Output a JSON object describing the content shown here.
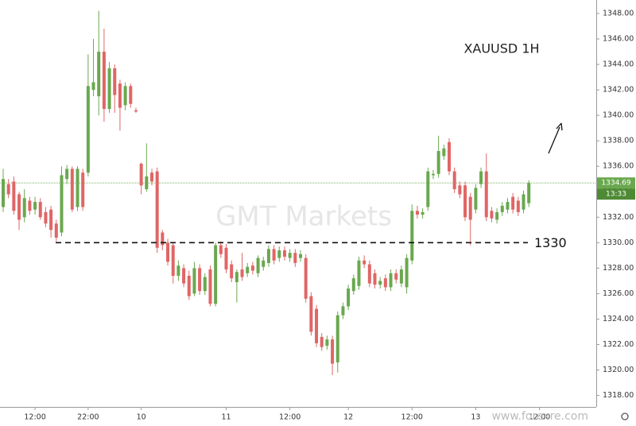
{
  "chart_data": {
    "type": "candlestick",
    "title": "XAUUSD 1H",
    "watermark": "GMT Markets",
    "source": "www.forexre.com",
    "level": 1330,
    "last_price": 1334.69,
    "countdown": "13:33",
    "up_color": "#6aa84f",
    "down_color": "#e06666",
    "ylim": [
      1317.1,
      1349.06
    ],
    "yticks": [
      {
        "value": 1318,
        "label": "1318.00"
      },
      {
        "value": 1320,
        "label": "1320.00"
      },
      {
        "value": 1322,
        "label": "1322.00"
      },
      {
        "value": 1324,
        "label": "1324.00"
      },
      {
        "value": 1326,
        "label": "1326.00"
      },
      {
        "value": 1328,
        "label": "1328.00"
      },
      {
        "value": 1330,
        "label": "1330.00"
      },
      {
        "value": 1332,
        "label": "1332.00"
      },
      {
        "value": 1334,
        "label": "1334.00"
      },
      {
        "value": 1336,
        "label": "1336.00"
      },
      {
        "value": 1338,
        "label": "1338.00"
      },
      {
        "value": 1340,
        "label": "1340.00"
      },
      {
        "value": 1342,
        "label": "1342.00"
      },
      {
        "value": 1344,
        "label": "1344.00"
      },
      {
        "value": 1346,
        "label": "1346.00"
      },
      {
        "value": 1348,
        "label": "1348.00"
      }
    ],
    "xlim": [
      -0.6,
      111.7
    ],
    "xticks": [
      {
        "value": 6,
        "label": "12:00"
      },
      {
        "value": 16,
        "label": "22:00"
      },
      {
        "value": 26,
        "label": "10"
      },
      {
        "value": 42,
        "label": "11"
      },
      {
        "value": 54,
        "label": "12:00"
      },
      {
        "value": 65,
        "label": "12"
      },
      {
        "value": 77,
        "label": "12:00"
      },
      {
        "value": 89,
        "label": "13"
      },
      {
        "value": 101,
        "label": "12:00"
      }
    ],
    "ohlc": [
      [
        1332.8,
        1335.8,
        1332.4,
        1335.0
      ],
      [
        1334.6,
        1335.0,
        1333.5,
        1333.8
      ],
      [
        1334.8,
        1335.2,
        1332.2,
        1332.5
      ],
      [
        1333.8,
        1334.0,
        1331.0,
        1331.8
      ],
      [
        1332.0,
        1334.2,
        1331.6,
        1333.5
      ],
      [
        1333.3,
        1333.6,
        1332.2,
        1332.5
      ],
      [
        1332.6,
        1333.6,
        1332.2,
        1333.2
      ],
      [
        1333.2,
        1333.5,
        1331.8,
        1332.0
      ],
      [
        1332.4,
        1332.8,
        1331.2,
        1331.5
      ],
      [
        1332.6,
        1332.9,
        1330.4,
        1331.0
      ],
      [
        1331.5,
        1331.8,
        1330.1,
        1330.4
      ],
      [
        1330.8,
        1336.0,
        1330.5,
        1335.3
      ],
      [
        1335.0,
        1336.1,
        1334.6,
        1335.8
      ],
      [
        1335.8,
        1336.0,
        1332.4,
        1332.6
      ],
      [
        1332.8,
        1336.0,
        1332.5,
        1335.8
      ],
      [
        1335.5,
        1335.8,
        1332.5,
        1332.8
      ],
      [
        1335.5,
        1344.8,
        1335.2,
        1342.3
      ],
      [
        1342.0,
        1346.0,
        1341.5,
        1342.6
      ],
      [
        1341.5,
        1348.2,
        1340.0,
        1345.0
      ],
      [
        1345.0,
        1346.8,
        1339.5,
        1340.5
      ],
      [
        1340.5,
        1344.2,
        1340.2,
        1343.7
      ],
      [
        1343.7,
        1344.0,
        1340.2,
        1341.6
      ],
      [
        1342.5,
        1342.8,
        1338.8,
        1340.6
      ],
      [
        1340.8,
        1342.6,
        1340.4,
        1342.3
      ],
      [
        1342.3,
        1342.5,
        1340.6,
        1340.9
      ],
      [
        1340.4,
        1340.6,
        1340.2,
        1340.3
      ],
      [
        1336.2,
        1336.3,
        1333.8,
        1334.5
      ],
      [
        1334.2,
        1337.8,
        1334.0,
        1335.2
      ],
      [
        1335.5,
        1335.8,
        1334.5,
        1334.8
      ],
      [
        1335.6,
        1335.9,
        1329.2,
        1329.6
      ],
      [
        1330.8,
        1331.0,
        1329.4,
        1329.8
      ],
      [
        1330.0,
        1330.3,
        1328.2,
        1328.5
      ],
      [
        1329.8,
        1330.0,
        1326.8,
        1327.4
      ],
      [
        1327.4,
        1328.6,
        1327.0,
        1328.2
      ],
      [
        1328.0,
        1328.3,
        1326.5,
        1326.8
      ],
      [
        1327.4,
        1327.8,
        1325.5,
        1325.8
      ],
      [
        1326.0,
        1328.5,
        1325.8,
        1328.0
      ],
      [
        1328.0,
        1328.3,
        1325.9,
        1326.2
      ],
      [
        1326.2,
        1327.6,
        1325.9,
        1327.3
      ],
      [
        1327.9,
        1328.2,
        1325.0,
        1325.2
      ],
      [
        1325.2,
        1330.0,
        1325.0,
        1329.8
      ],
      [
        1329.8,
        1330.1,
        1328.8,
        1329.1
      ],
      [
        1329.6,
        1329.9,
        1327.6,
        1327.9
      ],
      [
        1328.3,
        1328.6,
        1326.9,
        1327.2
      ],
      [
        1326.9,
        1327.9,
        1325.3,
        1327.7
      ],
      [
        1327.9,
        1329.2,
        1327.0,
        1327.3
      ],
      [
        1327.6,
        1328.4,
        1327.3,
        1328.1
      ],
      [
        1328.2,
        1328.5,
        1327.5,
        1327.8
      ],
      [
        1327.6,
        1329.0,
        1327.3,
        1328.8
      ],
      [
        1328.1,
        1328.9,
        1327.8,
        1328.6
      ],
      [
        1328.4,
        1329.8,
        1328.1,
        1329.5
      ],
      [
        1329.5,
        1329.8,
        1328.3,
        1328.6
      ],
      [
        1328.8,
        1329.7,
        1328.5,
        1329.4
      ],
      [
        1329.4,
        1329.7,
        1328.6,
        1328.9
      ],
      [
        1328.8,
        1329.5,
        1328.5,
        1329.2
      ],
      [
        1329.2,
        1329.5,
        1328.1,
        1328.4
      ],
      [
        1328.8,
        1329.4,
        1328.5,
        1329.1
      ],
      [
        1328.8,
        1329.1,
        1325.3,
        1325.6
      ],
      [
        1325.8,
        1326.1,
        1322.7,
        1323.0
      ],
      [
        1324.8,
        1325.1,
        1321.8,
        1322.1
      ],
      [
        1322.6,
        1322.9,
        1321.5,
        1321.8
      ],
      [
        1321.9,
        1322.7,
        1321.6,
        1322.4
      ],
      [
        1322.4,
        1322.7,
        1319.6,
        1320.5
      ],
      [
        1320.6,
        1324.6,
        1319.8,
        1324.3
      ],
      [
        1324.3,
        1325.3,
        1324.0,
        1325.0
      ],
      [
        1325.0,
        1326.7,
        1324.7,
        1326.4
      ],
      [
        1326.2,
        1327.5,
        1325.9,
        1327.2
      ],
      [
        1326.6,
        1328.9,
        1326.3,
        1328.6
      ],
      [
        1328.6,
        1329.0,
        1328.0,
        1328.3
      ],
      [
        1328.3,
        1328.6,
        1326.5,
        1326.8
      ],
      [
        1327.6,
        1327.9,
        1326.4,
        1326.7
      ],
      [
        1326.7,
        1327.3,
        1326.4,
        1327.0
      ],
      [
        1327.2,
        1327.5,
        1326.2,
        1326.5
      ],
      [
        1326.5,
        1327.9,
        1326.2,
        1327.6
      ],
      [
        1327.6,
        1327.9,
        1326.8,
        1327.1
      ],
      [
        1326.8,
        1328.2,
        1326.5,
        1327.9
      ],
      [
        1326.5,
        1329.1,
        1326.0,
        1328.8
      ],
      [
        1328.6,
        1333.0,
        1328.3,
        1332.5
      ],
      [
        1332.5,
        1332.9,
        1331.9,
        1332.2
      ],
      [
        1332.2,
        1332.7,
        1331.9,
        1332.4
      ],
      [
        1332.8,
        1335.9,
        1332.5,
        1335.6
      ],
      [
        1335.3,
        1335.7,
        1335.0,
        1335.4
      ],
      [
        1335.4,
        1338.4,
        1335.1,
        1337.2
      ],
      [
        1336.8,
        1337.7,
        1336.5,
        1337.4
      ],
      [
        1337.9,
        1338.2,
        1335.3,
        1335.6
      ],
      [
        1335.6,
        1335.9,
        1333.9,
        1334.2
      ],
      [
        1334.5,
        1334.8,
        1333.5,
        1333.8
      ],
      [
        1334.5,
        1334.8,
        1331.7,
        1332.0
      ],
      [
        1333.6,
        1333.9,
        1329.8,
        1331.8
      ],
      [
        1332.6,
        1334.6,
        1332.3,
        1334.3
      ],
      [
        1334.6,
        1335.9,
        1334.3,
        1335.6
      ],
      [
        1335.6,
        1337.0,
        1331.7,
        1332.0
      ],
      [
        1332.5,
        1332.8,
        1331.6,
        1331.9
      ],
      [
        1331.8,
        1332.7,
        1331.5,
        1332.4
      ],
      [
        1332.4,
        1333.2,
        1332.1,
        1332.9
      ],
      [
        1332.6,
        1333.5,
        1332.3,
        1333.2
      ],
      [
        1333.6,
        1333.9,
        1332.3,
        1332.6
      ],
      [
        1333.3,
        1333.6,
        1332.1,
        1332.4
      ],
      [
        1332.6,
        1334.1,
        1332.3,
        1333.8
      ],
      [
        1333.1,
        1334.9,
        1332.8,
        1334.69
      ]
    ]
  }
}
